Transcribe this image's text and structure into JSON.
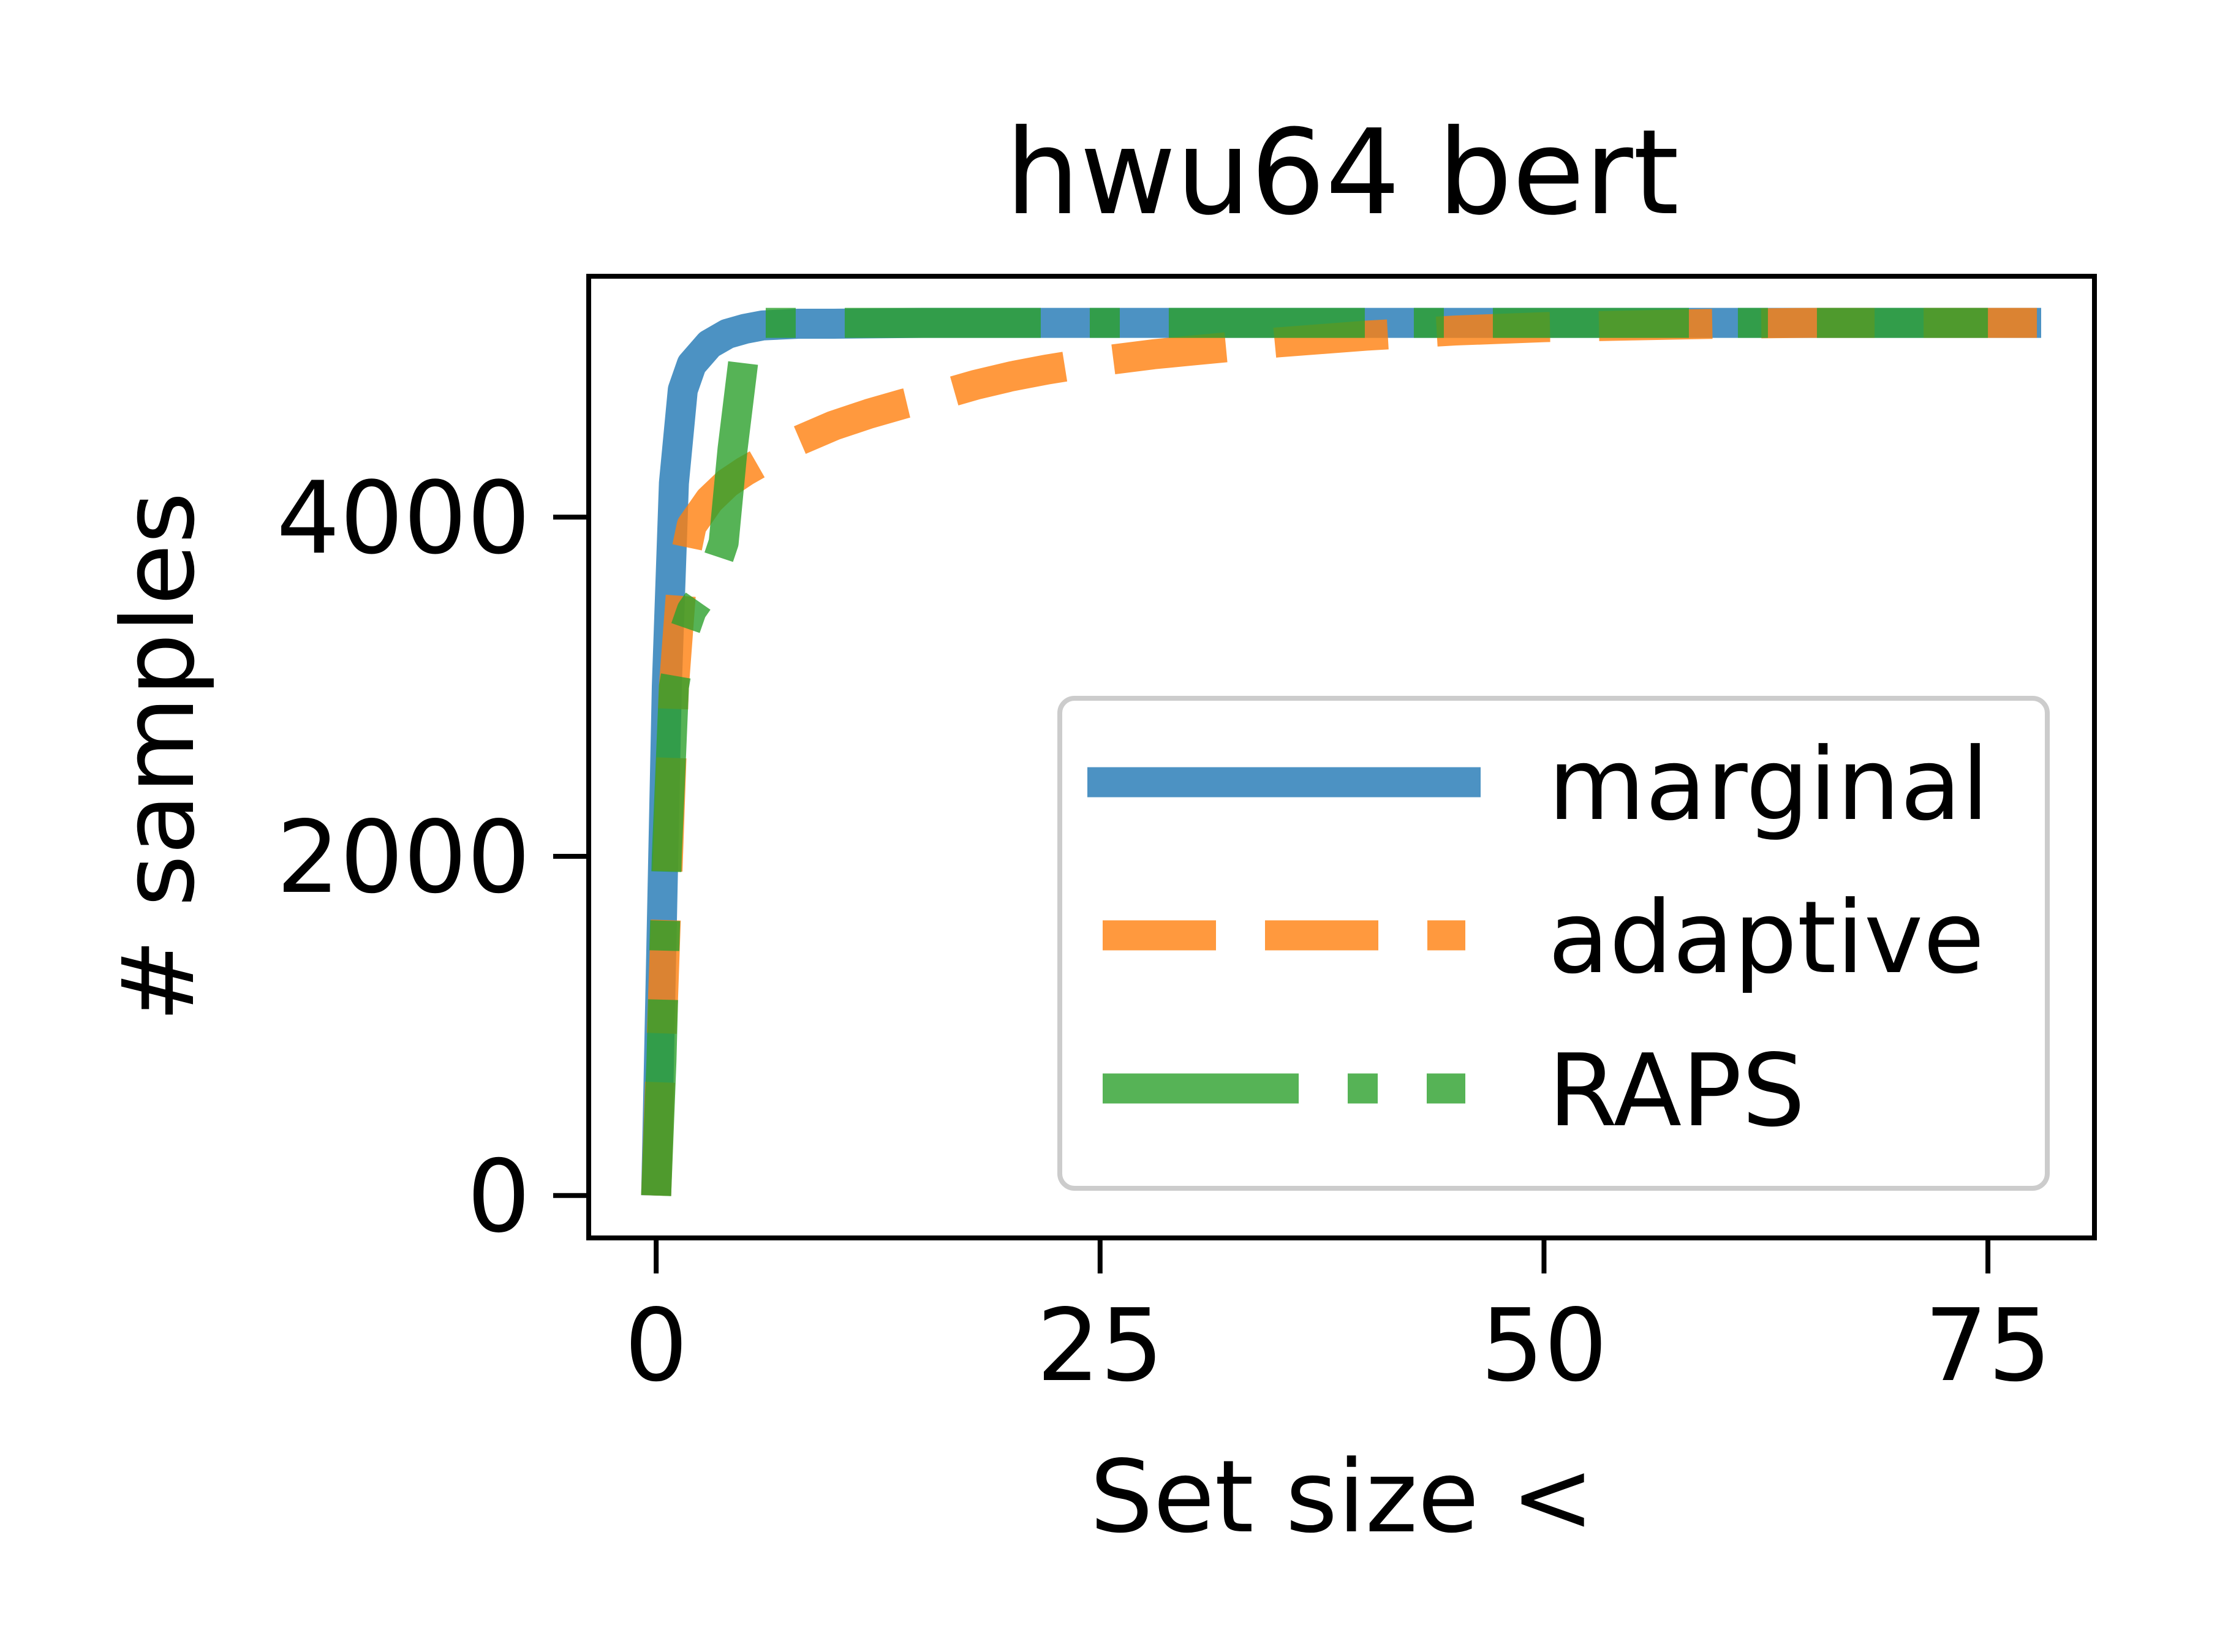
{
  "chart_data": {
    "type": "line",
    "title": "hwu64 bert",
    "xlabel": "Set size <",
    "ylabel": "# samples",
    "xlim": [
      -3.8,
      81
    ],
    "ylim": [
      -250,
      5420
    ],
    "xticks": [
      0,
      25,
      50,
      75
    ],
    "yticks": [
      0,
      2000,
      4000
    ],
    "xtick_labels": [
      "0",
      "25",
      "50",
      "75"
    ],
    "ytick_labels": [
      "0",
      "2000",
      "4000"
    ],
    "grid": false,
    "legend_position": "lower-right",
    "series": [
      {
        "name": "marginal",
        "color": "#1f77b4",
        "style": "solid",
        "x": [
          0,
          0.3,
          0.6,
          1,
          1.5,
          2,
          3,
          4,
          5,
          6,
          8,
          10,
          15,
          20,
          30,
          40,
          50,
          60,
          70,
          78
        ],
        "y": [
          0,
          1500,
          3000,
          4200,
          4750,
          4900,
          5020,
          5080,
          5110,
          5130,
          5140,
          5140,
          5145,
          5145,
          5145,
          5145,
          5145,
          5145,
          5145,
          5145
        ]
      },
      {
        "name": "adaptive",
        "color": "#ff7f0e",
        "style": "dashed",
        "x": [
          0,
          0.5,
          1,
          1.5,
          2,
          3,
          4,
          5,
          6,
          8,
          10,
          12,
          14,
          16,
          18,
          20,
          22,
          25,
          28,
          30,
          35,
          40,
          45,
          50,
          55,
          60,
          65,
          70,
          75,
          78
        ],
        "y": [
          0,
          1500,
          3000,
          3700,
          3950,
          4100,
          4200,
          4270,
          4330,
          4450,
          4540,
          4610,
          4670,
          4720,
          4780,
          4830,
          4870,
          4920,
          4960,
          4980,
          5030,
          5070,
          5100,
          5120,
          5130,
          5140,
          5145,
          5145,
          5145,
          5145
        ]
      },
      {
        "name": "RAPS",
        "color": "#2ca02c",
        "style": "dashdot",
        "x": [
          0,
          0.3,
          0.6,
          1,
          1.5,
          2,
          3,
          3.8,
          4.3,
          5,
          6,
          10,
          20,
          30,
          40,
          50,
          60,
          70,
          75
        ],
        "y": [
          0,
          800,
          2000,
          3000,
          3300,
          3450,
          3600,
          3850,
          4400,
          5000,
          5145,
          5145,
          5145,
          5145,
          5145,
          5145,
          5145,
          5145,
          5145
        ]
      }
    ]
  }
}
